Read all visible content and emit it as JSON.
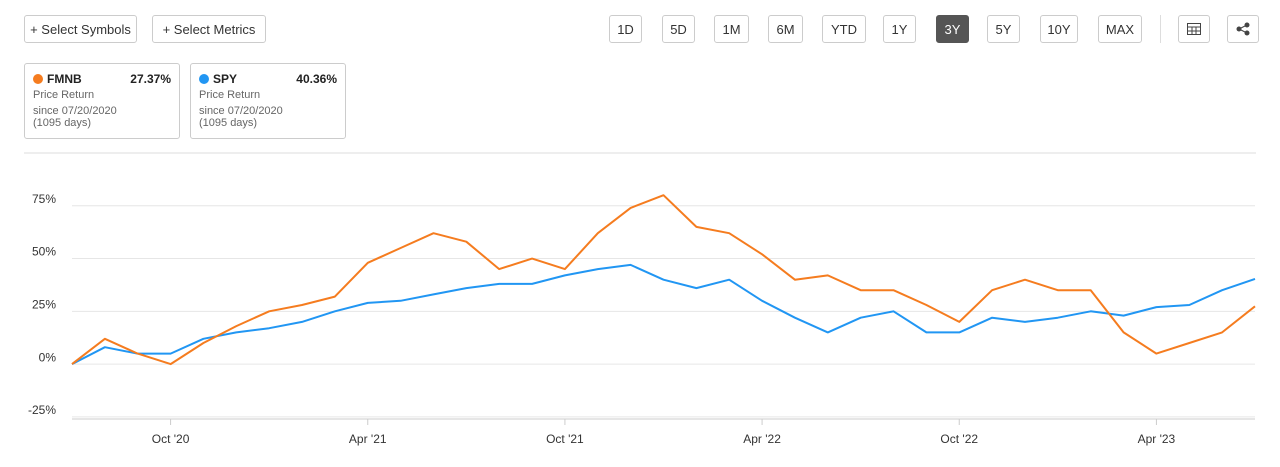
{
  "toolbar": {
    "select_symbols": "+ Select Symbols",
    "select_metrics": "+ Select Metrics",
    "ranges": [
      "1D",
      "5D",
      "1M",
      "6M",
      "YTD",
      "1Y",
      "3Y",
      "5Y",
      "10Y",
      "MAX"
    ],
    "active_range": "3Y"
  },
  "cards": [
    {
      "return": "27.37%",
      "metric": "Price Return",
      "since": "since 07/20/2020",
      "days": "(1095 days)"
    },
    {
      "return": "40.36%",
      "metric": "Price Return",
      "since": "since 07/20/2020",
      "days": "(1095 days)"
    }
  ],
  "chart_data": {
    "type": "line",
    "categories": [
      null,
      null,
      null,
      "Oct '20",
      null,
      null,
      null,
      null,
      null,
      "Apr '21",
      null,
      null,
      null,
      null,
      null,
      "Oct '21",
      null,
      null,
      null,
      null,
      null,
      "Apr '22",
      null,
      null,
      null,
      null,
      null,
      "Oct '22",
      null,
      null,
      null,
      null,
      null,
      "Apr '23",
      null,
      null,
      null
    ],
    "series": [
      {
        "name": "FMNB",
        "color": "#f57c1f",
        "values": [
          0,
          12,
          5,
          0,
          10,
          18,
          25,
          28,
          32,
          48,
          55,
          62,
          58,
          45,
          50,
          45,
          62,
          74,
          80,
          65,
          62,
          52,
          40,
          42,
          35,
          35,
          28,
          20,
          35,
          40,
          35,
          35,
          15,
          5,
          10,
          15,
          27.37
        ]
      },
      {
        "name": "SPY",
        "color": "#2196f3",
        "values": [
          0,
          8,
          5,
          5,
          12,
          15,
          17,
          20,
          25,
          29,
          30,
          33,
          36,
          38,
          38,
          42,
          45,
          47,
          40,
          36,
          40,
          30,
          22,
          15,
          22,
          25,
          15,
          15,
          22,
          20,
          22,
          25,
          23,
          27,
          28,
          35,
          40.36
        ]
      }
    ],
    "ylim": [
      -26,
      100
    ],
    "yticks": [
      {
        "value": -25,
        "label": "-25%"
      },
      {
        "value": 0,
        "label": "0%"
      },
      {
        "value": 25,
        "label": "25%"
      },
      {
        "value": 50,
        "label": "50%"
      },
      {
        "value": 75,
        "label": "75%"
      }
    ],
    "grid": true
  }
}
